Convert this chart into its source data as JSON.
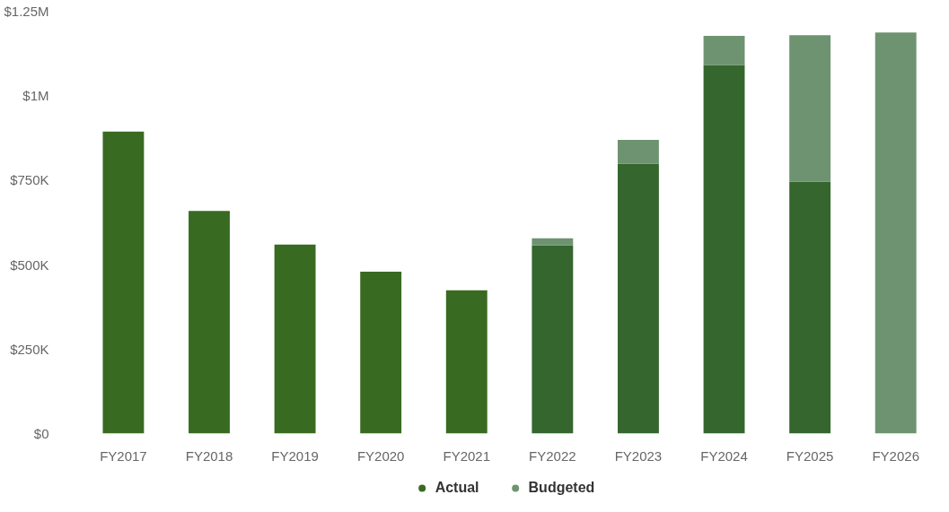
{
  "chart_data": {
    "type": "bar",
    "stacked": true,
    "categories": [
      "FY2017",
      "FY2018",
      "FY2019",
      "FY2020",
      "FY2021",
      "FY2022",
      "FY2023",
      "FY2024",
      "FY2025",
      "FY2026"
    ],
    "series": [
      {
        "name": "Actual",
        "color": "#386b21",
        "colors": [
          "#386b21",
          "#386b21",
          "#386b21",
          "#386b21",
          "#386b21",
          "#34662d",
          "#34662d",
          "#34662d",
          "#34662d",
          "#34662d"
        ],
        "values": [
          894000,
          659000,
          559000,
          479000,
          424000,
          557000,
          799000,
          1091000,
          746000,
          null
        ]
      },
      {
        "name": "Budgeted",
        "color": "#6e9370",
        "values": [
          null,
          null,
          null,
          null,
          null,
          21000,
          70000,
          86000,
          433000,
          1187000
        ]
      }
    ],
    "ylim": [
      0,
      1250000
    ],
    "yticks": [
      {
        "value": 0,
        "label": "$0"
      },
      {
        "value": 250000,
        "label": "$250K"
      },
      {
        "value": 500000,
        "label": "$500K"
      },
      {
        "value": 750000,
        "label": "$750K"
      },
      {
        "value": 1000000,
        "label": "$1M"
      },
      {
        "value": 1250000,
        "label": "$1.25M"
      }
    ],
    "grid": false,
    "legend": "bottom"
  }
}
